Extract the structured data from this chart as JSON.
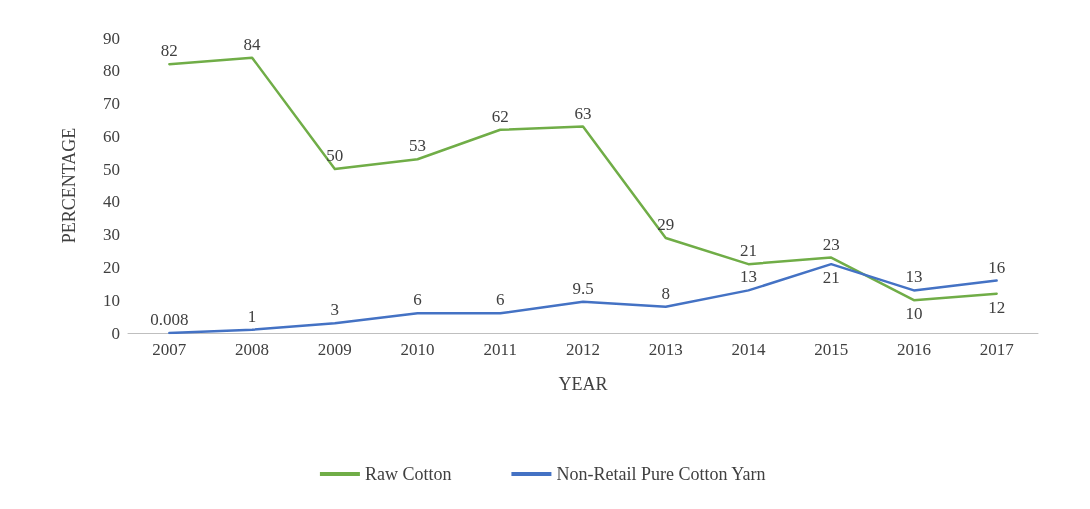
{
  "chart_data": {
    "type": "line",
    "xlabel": "YEAR",
    "ylabel": "PERCENTAGE",
    "categories": [
      "2007",
      "2008",
      "2009",
      "2010",
      "2011",
      "2012",
      "2013",
      "2014",
      "2015",
      "2016",
      "2017"
    ],
    "series": [
      {
        "name": "Raw Cotton",
        "color": "#70ad47",
        "values": [
          82,
          84,
          50,
          53,
          62,
          63,
          29,
          21,
          23,
          10,
          12
        ]
      },
      {
        "name": "Non-Retail Pure Cotton Yarn",
        "color": "#4472c4",
        "values": [
          0.008,
          1,
          3,
          6,
          6,
          9.5,
          8,
          13,
          21,
          13,
          16
        ]
      }
    ],
    "ylim": [
      0,
      90
    ],
    "yticks": [
      0,
      10,
      20,
      30,
      40,
      50,
      60,
      70,
      80,
      90
    ],
    "grid": false,
    "legend": "bottom",
    "data_labels": true,
    "marker": "none",
    "line_style": "solid"
  }
}
